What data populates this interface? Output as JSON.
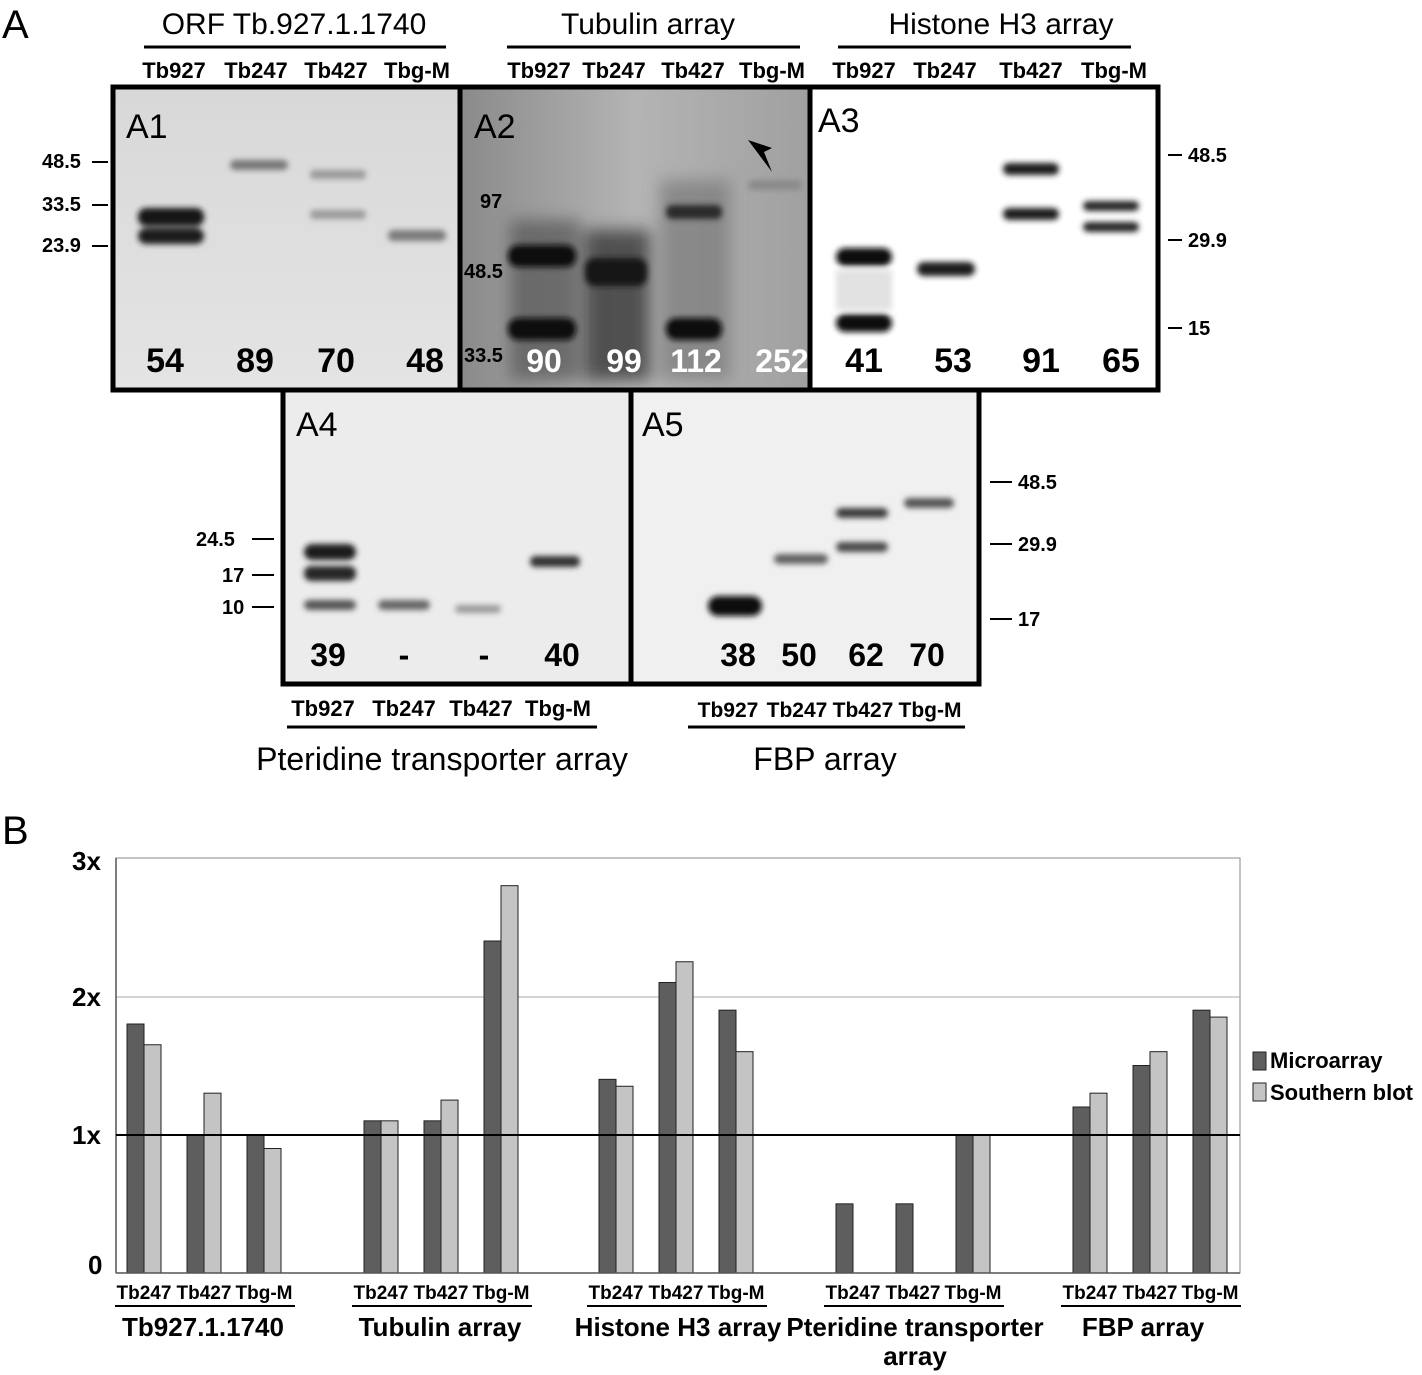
{
  "panel_a": {
    "letter": "A",
    "groups": [
      {
        "title": "ORF Tb.927.1.1740",
        "lanes": [
          "Tb927",
          "Tb247",
          "Tb427",
          "Tbg-M"
        ]
      },
      {
        "title": "Tubulin array",
        "lanes": [
          "Tb927",
          "Tb247",
          "Tb427",
          "Tbg-M"
        ]
      },
      {
        "title": "Histone H3 array",
        "lanes": [
          "Tb927",
          "Tb247",
          "Tb427",
          "Tbg-M"
        ]
      },
      {
        "title": "Pteridine transporter array",
        "lanes": [
          "Tb927",
          "Tb247",
          "Tb427",
          "Tbg-M"
        ]
      },
      {
        "title": "FBP array",
        "lanes": [
          "Tb927",
          "Tb247",
          "Tb427",
          "Tbg-M"
        ]
      }
    ],
    "blots": [
      {
        "label": "A1",
        "numbers": [
          "54",
          "89",
          "70",
          "48"
        ],
        "markers": [
          "48.5",
          "33.5",
          "23.9"
        ]
      },
      {
        "label": "A2",
        "numbers": [
          "90",
          "99",
          "112",
          "252"
        ],
        "markers": [
          "97",
          "48.5",
          "33.5"
        ]
      },
      {
        "label": "A3",
        "numbers": [
          "41",
          "53",
          "91",
          "65"
        ],
        "markers": [
          "48.5",
          "29.9",
          "15"
        ]
      },
      {
        "label": "A4",
        "numbers": [
          "39",
          "-",
          "-",
          "40"
        ],
        "markers": [
          "24.5",
          "17",
          "10"
        ]
      },
      {
        "label": "A5",
        "numbers": [
          "38",
          "50",
          "62",
          "70"
        ],
        "markers": [
          "48.5",
          "29.9",
          "17"
        ]
      }
    ]
  },
  "panel_b": {
    "letter": "B",
    "yticks": [
      "3x",
      "2x",
      "1x",
      "0"
    ],
    "legend": [
      {
        "label": "Microarray",
        "color": "#5e5e5e"
      },
      {
        "label": "Southern blot",
        "color": "#c4c4c4"
      }
    ],
    "group_labels": [
      "Tb927.1.1740",
      "Tubulin array",
      "Histone H3 array",
      "Pteridine transporter",
      "array",
      "FBP array"
    ]
  },
  "chart_data": {
    "type": "bar",
    "ylim": [
      0,
      3
    ],
    "yticks": [
      "3x",
      "2x",
      "1x",
      "0"
    ],
    "legend_position": "right",
    "groups": [
      {
        "name": "Tb927.1.1740",
        "categories": [
          "Tb247",
          "Tb427",
          "Tbg-M"
        ],
        "microarray": [
          1.8,
          1.0,
          1.0
        ],
        "southern_blot": [
          1.65,
          1.3,
          0.9
        ]
      },
      {
        "name": "Tubulin array",
        "categories": [
          "Tb247",
          "Tb427",
          "Tbg-M"
        ],
        "microarray": [
          1.1,
          1.1,
          2.4
        ],
        "southern_blot": [
          1.1,
          1.25,
          2.8
        ]
      },
      {
        "name": "Histone H3 array",
        "categories": [
          "Tb247",
          "Tb427",
          "Tbg-M"
        ],
        "microarray": [
          1.4,
          2.1,
          1.9
        ],
        "southern_blot": [
          1.35,
          2.25,
          1.6
        ]
      },
      {
        "name": "Pteridine transporter array",
        "categories": [
          "Tb247",
          "Tb427",
          "Tbg-M"
        ],
        "microarray": [
          0.5,
          0.5,
          1.0
        ],
        "southern_blot": [
          null,
          null,
          1.0
        ]
      },
      {
        "name": "FBP array",
        "categories": [
          "Tb247",
          "Tb427",
          "Tbg-M"
        ],
        "microarray": [
          1.2,
          1.5,
          1.9
        ],
        "southern_blot": [
          1.3,
          1.6,
          1.85
        ]
      }
    ],
    "series": [
      {
        "name": "Microarray",
        "color": "#5e5e5e"
      },
      {
        "name": "Southern blot",
        "color": "#c4c4c4"
      }
    ]
  }
}
